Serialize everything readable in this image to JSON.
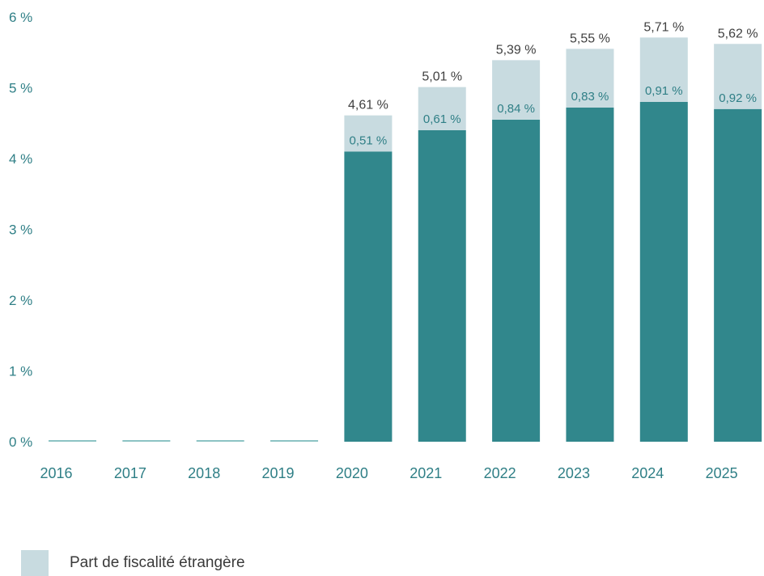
{
  "chart_data": {
    "type": "bar",
    "stacked": true,
    "categories": [
      "2016",
      "2017",
      "2018",
      "2019",
      "2020",
      "2021",
      "2022",
      "2023",
      "2024",
      "2025"
    ],
    "ylim": [
      0,
      6
    ],
    "yticks": [
      "0 %",
      "1 %",
      "2 %",
      "3 %",
      "4 %",
      "5 %",
      "6 %"
    ],
    "series": [
      {
        "values": [
          0.02,
          0.02,
          0.02,
          0.02,
          4.1,
          4.4,
          4.55,
          4.72,
          4.8,
          4.7
        ],
        "color": "#31878c"
      },
      {
        "name": "Part de fiscalité étrangère",
        "values": [
          0,
          0,
          0,
          0,
          0.51,
          0.61,
          0.84,
          0.83,
          0.91,
          0.92
        ],
        "labels": [
          "",
          "",
          "",
          "",
          "0,51 %",
          "0,61 %",
          "0,84 %",
          "0,83 %",
          "0,91 %",
          "0,92 %"
        ],
        "color": "#c8dbe0"
      }
    ],
    "totals": [
      null,
      null,
      null,
      null,
      4.61,
      5.01,
      5.39,
      5.55,
      5.71,
      5.62
    ],
    "total_labels": [
      "",
      "",
      "",
      "",
      "4,61 %",
      "5,01 %",
      "5,39 %",
      "5,55 %",
      "5,71 %",
      "5,62 %"
    ],
    "colors": {
      "axis_text": "#2f7f86",
      "total_text": "#404040",
      "inner_label_text": "#2f7f86",
      "small_bar": "#8cc3c4"
    },
    "legend": {
      "position": "bottom-left",
      "label": "Part de fiscalité étrangère",
      "color": "#c8dbe0"
    }
  }
}
